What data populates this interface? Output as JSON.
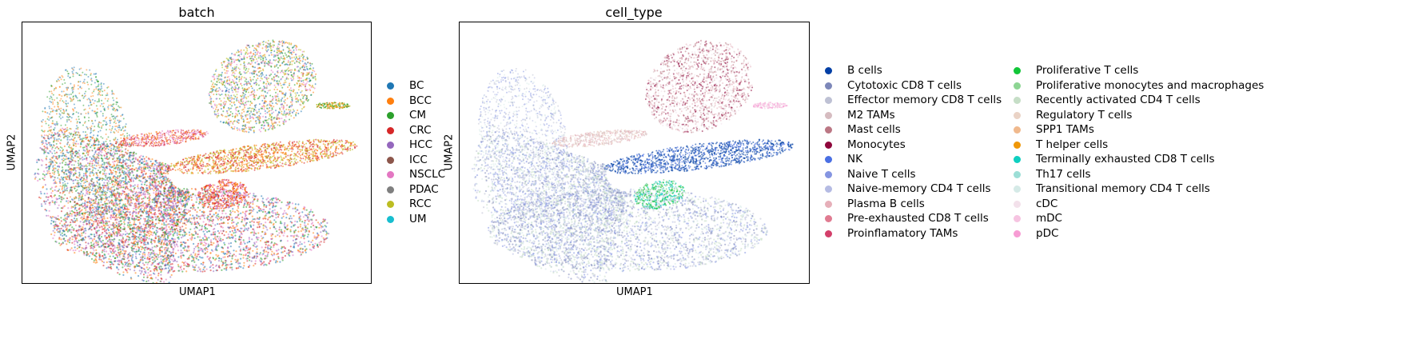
{
  "chart_data": [
    {
      "type": "scatter",
      "title": "batch",
      "xlabel": "UMAP1",
      "ylabel": "UMAP2",
      "grid": false,
      "legend_placement": "right",
      "legend": [
        {
          "label": "BC",
          "color": "#1f77b4"
        },
        {
          "label": "BCC",
          "color": "#ff7f0e"
        },
        {
          "label": "CM",
          "color": "#2ca02c"
        },
        {
          "label": "CRC",
          "color": "#d62728"
        },
        {
          "label": "HCC",
          "color": "#9467bd"
        },
        {
          "label": "ICC",
          "color": "#8c564b"
        },
        {
          "label": "NSCLC",
          "color": "#e377c2"
        },
        {
          "label": "PDAC",
          "color": "#7f7f7f"
        },
        {
          "label": "RCC",
          "color": "#bcbd22"
        },
        {
          "label": "UM",
          "color": "#17becf"
        }
      ]
    },
    {
      "type": "scatter",
      "title": "cell_type",
      "xlabel": "UMAP1",
      "ylabel": "UMAP2",
      "grid": false,
      "legend_placement": "right",
      "legend": [
        {
          "label": "B cells",
          "color": "#023fa5"
        },
        {
          "label": "Cytotoxic CD8 T cells",
          "color": "#7d87b9"
        },
        {
          "label": "Effector memory CD8 T cells",
          "color": "#bec1d4"
        },
        {
          "label": "M2 TAMs",
          "color": "#d6bcc0"
        },
        {
          "label": "Mast cells",
          "color": "#bb7784"
        },
        {
          "label": "Monocytes",
          "color": "#8e063b"
        },
        {
          "label": "NK",
          "color": "#4a6fe3"
        },
        {
          "label": "Naive T cells",
          "color": "#8595e1"
        },
        {
          "label": "Naive-memory CD4 T cells",
          "color": "#b5bbe3"
        },
        {
          "label": "Plasma B cells",
          "color": "#e6afb9"
        },
        {
          "label": "Pre-exhausted CD8 T cells",
          "color": "#e07b91"
        },
        {
          "label": "Proinflamatory TAMs",
          "color": "#d33f6a"
        },
        {
          "label": "Proliferative T cells",
          "color": "#11c638"
        },
        {
          "label": "Proliferative monocytes and macrophages",
          "color": "#8dd593"
        },
        {
          "label": "Recently activated CD4 T cells",
          "color": "#c6dec7"
        },
        {
          "label": "Regulatory T cells",
          "color": "#ead3c6"
        },
        {
          "label": "SPP1 TAMs",
          "color": "#f0b98d"
        },
        {
          "label": "T helper cells",
          "color": "#ef9708"
        },
        {
          "label": "Terminally exhausted CD8 T cells",
          "color": "#0fcfc0"
        },
        {
          "label": "Th17 cells",
          "color": "#9cded6"
        },
        {
          "label": "Transitional memory CD4 T cells",
          "color": "#d5eae7"
        },
        {
          "label": "cDC",
          "color": "#f3e1eb"
        },
        {
          "label": "mDC",
          "color": "#f6c4e1"
        },
        {
          "label": "pDC",
          "color": "#f79cd4"
        }
      ]
    }
  ]
}
